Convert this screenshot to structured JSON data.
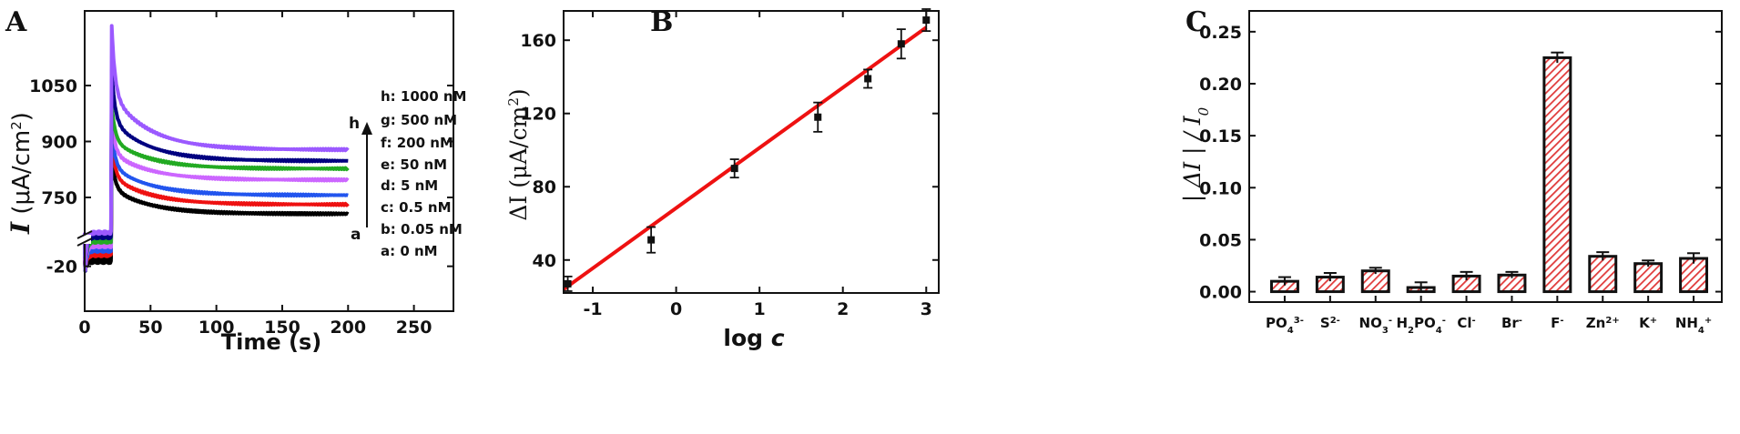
{
  "chart_data": [
    {
      "panel": "A",
      "type": "line",
      "xlabel": "Time (s)",
      "ylabel_italic": "I",
      "ylabel_rest": " (μA/cm",
      "ylabel_sup": "2",
      "ylabel_close": ")",
      "xlim": [
        0,
        280
      ],
      "xticks": [
        "0",
        "50",
        "100",
        "150",
        "200",
        "250"
      ],
      "xtick_values": [
        0,
        50,
        100,
        150,
        200,
        250
      ],
      "yticks": [
        "-20",
        "750",
        "900",
        "1050"
      ],
      "axis_break": true,
      "curve_start_label": "a",
      "curve_end_label": "h",
      "legend_position": "right",
      "series": [
        {
          "name": "h: 1000 nM",
          "color": "#9b59ff",
          "spike": 1210,
          "plateau": 878
        },
        {
          "name": "g: 500 nM",
          "color": "#000080",
          "spike": 1090,
          "plateau": 848
        },
        {
          "name": "f: 200 nM",
          "color": "#22aa22",
          "spike": 1000,
          "plateau": 827
        },
        {
          "name": "e: 50 nM",
          "color": "#cc66ff",
          "spike": 960,
          "plateau": 797
        },
        {
          "name": "d: 5 nM",
          "color": "#2255ee",
          "spike": 930,
          "plateau": 756
        },
        {
          "name": "c: 0.5 nM",
          "color": "#ee1111",
          "spike": 900,
          "plateau": 731
        },
        {
          "name": "b: 0.05 nM",
          "color": "#000000",
          "spike": 860,
          "plateau": 706
        },
        {
          "name": "a: 0 nM",
          "color": "#000000",
          "spike": 860,
          "plateau": 706
        }
      ],
      "legend": [
        "h: 1000 nM",
        "g: 500 nM",
        "f: 200 nM",
        "e: 50 nM",
        "d: 5 nM",
        "c: 0.5 nM",
        "b: 0.05 nM",
        "a: 0 nM"
      ]
    },
    {
      "panel": "B",
      "type": "scatter",
      "xlabel_upright": "log ",
      "xlabel_italic": "c",
      "ylabel_delta": "ΔI (μA/cm",
      "ylabel_sup": "2",
      "ylabel_close": ")",
      "xlim": [
        -1.35,
        3.15
      ],
      "ylim": [
        22,
        176
      ],
      "xticks": [
        "-1",
        "0",
        "1",
        "2",
        "3"
      ],
      "xtick_values": [
        -1,
        0,
        1,
        2,
        3
      ],
      "yticks": [
        "40",
        "80",
        "120",
        "160"
      ],
      "ytick_values": [
        40,
        80,
        120,
        160
      ],
      "points": [
        {
          "x": -1.3,
          "y": 27,
          "err": 4
        },
        {
          "x": -0.3,
          "y": 51,
          "err": 7
        },
        {
          "x": 0.7,
          "y": 90,
          "err": 5
        },
        {
          "x": 1.7,
          "y": 118,
          "err": 8
        },
        {
          "x": 2.3,
          "y": 139,
          "err": 5
        },
        {
          "x": 2.7,
          "y": 158,
          "err": 8
        },
        {
          "x": 3.0,
          "y": 171,
          "err": 6
        }
      ],
      "fit_line": {
        "x": [
          -1.35,
          3.0
        ],
        "y": [
          24,
          167
        ],
        "color": "#ee1111"
      }
    },
    {
      "panel": "C",
      "type": "bar",
      "ylabel_parts": [
        "| ΔI | / I",
        "0"
      ],
      "ylim": [
        -0.01,
        0.27
      ],
      "yticks": [
        "0.00",
        "0.05",
        "0.10",
        "0.15",
        "0.20",
        "0.25"
      ],
      "ytick_values": [
        0,
        0.05,
        0.1,
        0.15,
        0.2,
        0.25
      ],
      "bar_color": "#e03a3a",
      "categories": [
        {
          "base": "PO",
          "sub": "4",
          "sup": "3-"
        },
        {
          "base": "S",
          "sub": "",
          "sup": "2-"
        },
        {
          "base": "NO",
          "sub": "3",
          "sup": "-"
        },
        {
          "base": "H",
          "sub": "2",
          "base2": "PO",
          "sub2": "4",
          "sup": "-"
        },
        {
          "base": "Cl",
          "sub": "",
          "sup": "-"
        },
        {
          "base": "Br",
          "sub": "",
          "sup": "-"
        },
        {
          "base": "F",
          "sub": "",
          "sup": "-"
        },
        {
          "base": "Zn",
          "sub": "",
          "sup": "2+"
        },
        {
          "base": "K",
          "sub": "",
          "sup": "+"
        },
        {
          "base": "NH",
          "sub": "4",
          "sup": "+"
        }
      ],
      "values": [
        0.01,
        0.014,
        0.02,
        0.004,
        0.015,
        0.016,
        0.225,
        0.034,
        0.027,
        0.032
      ],
      "errors": [
        0.004,
        0.004,
        0.003,
        0.005,
        0.004,
        0.003,
        0.005,
        0.004,
        0.003,
        0.005
      ]
    }
  ]
}
